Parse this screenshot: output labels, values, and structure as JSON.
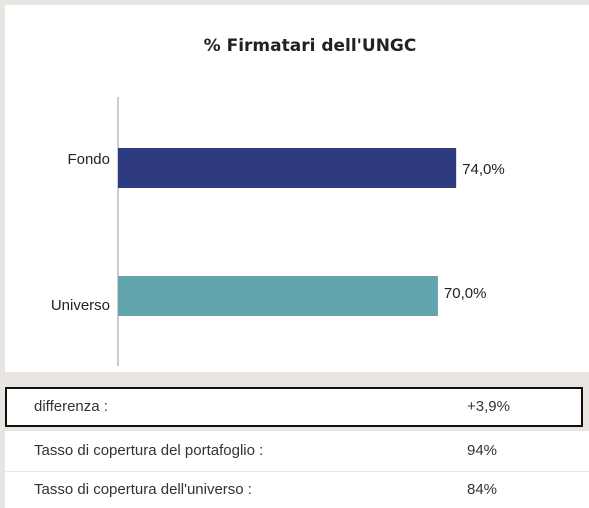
{
  "chart_data": {
    "type": "bar",
    "orientation": "horizontal",
    "title": "% Firmatari dell'UNGC",
    "categories": [
      "Fondo",
      "Universo"
    ],
    "values": [
      74,
      70
    ],
    "value_labels": [
      "74,0%",
      "70,0%"
    ],
    "colors": [
      "#2e3b80",
      "#61a4ae"
    ],
    "xlim": [
      0,
      100
    ]
  },
  "table": {
    "rows": [
      [
        "differenza :",
        "+3,9%"
      ],
      [
        "Tasso di copertura del portafoglio :",
        "94%"
      ],
      [
        "Tasso di copertura dell'universo :",
        "84%"
      ]
    ]
  }
}
